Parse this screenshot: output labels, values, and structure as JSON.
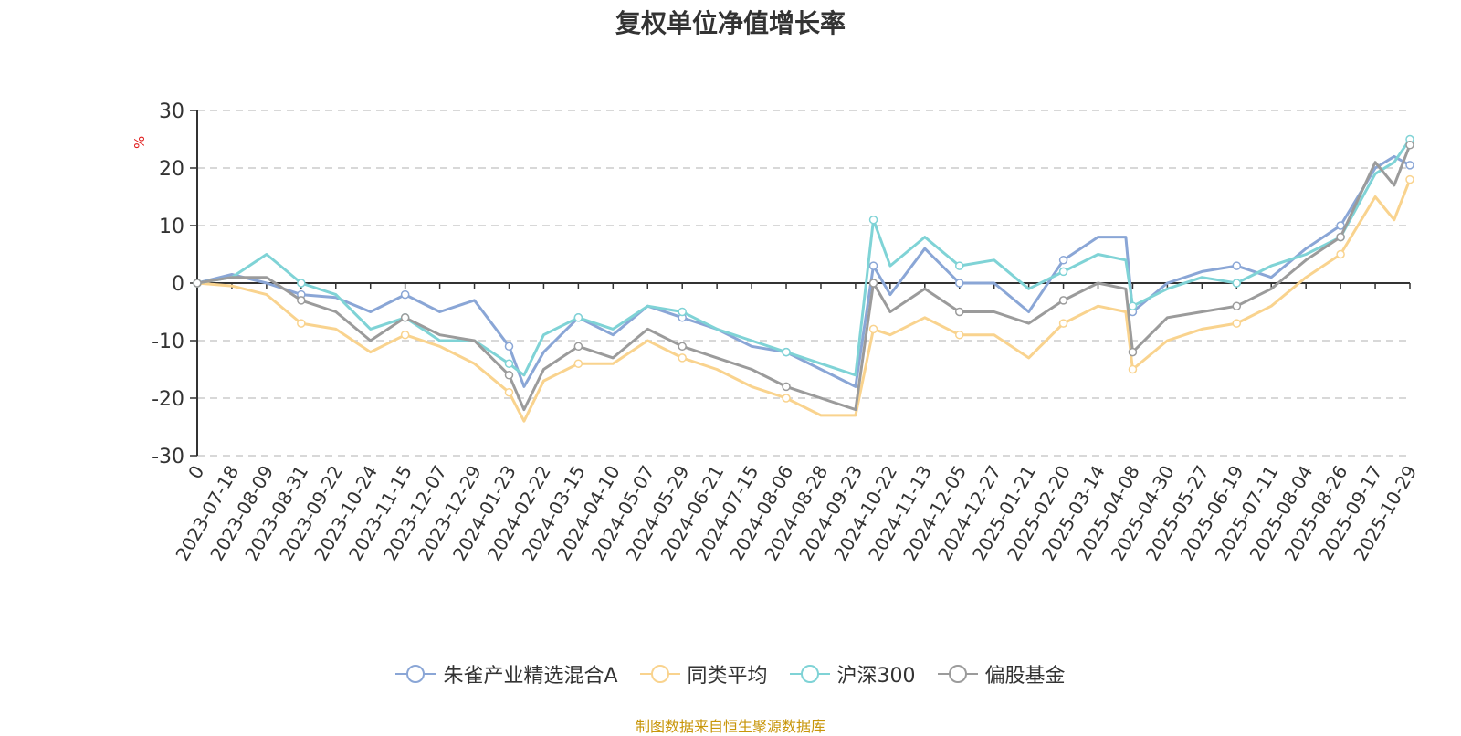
{
  "chart_data": {
    "type": "line",
    "title": "复权单位净值增长率",
    "ylabel": "%",
    "ylim": [
      -30,
      30
    ],
    "yticks": [
      30,
      20,
      10,
      0,
      -10,
      -20,
      -30
    ],
    "grid": true,
    "legend_position": "bottom",
    "x_tick_labels": [
      "0",
      "2023-07-18",
      "2023-08-09",
      "2023-08-31",
      "2023-09-22",
      "2023-10-24",
      "2023-11-15",
      "2023-12-07",
      "2023-12-29",
      "2024-01-23",
      "2024-02-22",
      "2024-03-15",
      "2024-04-10",
      "2024-05-07",
      "2024-05-29",
      "2024-06-21",
      "2024-07-15",
      "2024-08-06",
      "2024-08-28",
      "2024-09-23",
      "2024-10-22",
      "2024-11-13",
      "2024-12-05",
      "2024-12-27",
      "2025-01-21",
      "2025-02-20",
      "2025-03-14",
      "2025-04-08",
      "2025-04-30",
      "2025-05-27",
      "2025-06-19",
      "2025-07-11",
      "2025-08-04",
      "2025-08-26",
      "2025-09-17",
      "2025-10-29"
    ],
    "x": [
      "0",
      "2023-07-18",
      "2023-08-09",
      "2023-08-31",
      "2023-09-22",
      "2023-10-24",
      "2023-11-15",
      "2023-12-07",
      "2023-12-29",
      "2024-01-23",
      "2024-02-05",
      "2024-02-22",
      "2024-03-15",
      "2024-04-10",
      "2024-05-07",
      "2024-05-29",
      "2024-06-21",
      "2024-07-15",
      "2024-08-06",
      "2024-08-28",
      "2024-09-23",
      "2024-10-08",
      "2024-10-22",
      "2024-11-13",
      "2024-12-05",
      "2024-12-27",
      "2025-01-21",
      "2025-02-20",
      "2025-03-14",
      "2025-04-03",
      "2025-04-08",
      "2025-04-30",
      "2025-05-27",
      "2025-06-19",
      "2025-07-11",
      "2025-08-04",
      "2025-08-26",
      "2025-09-17",
      "2025-10-10",
      "2025-10-29"
    ],
    "series": [
      {
        "name": "朱雀产业精选混合A",
        "color": "#8aa6d6",
        "values": [
          0,
          1.5,
          0,
          -2,
          -2.5,
          -5,
          -2,
          -5,
          -3,
          -11,
          -18,
          -12,
          -6,
          -9,
          -4,
          -6,
          -8,
          -11,
          -12,
          -15,
          -18,
          3,
          -2,
          6,
          0,
          0,
          -5,
          4,
          8,
          8,
          -5,
          0,
          2,
          3,
          1,
          6,
          10,
          20,
          22,
          20.5
        ]
      },
      {
        "name": "同类平均",
        "color": "#f9d38e",
        "values": [
          0,
          -0.5,
          -2,
          -7,
          -8,
          -12,
          -9,
          -11,
          -14,
          -19,
          -24,
          -17,
          -14,
          -14,
          -10,
          -13,
          -15,
          -18,
          -20,
          -23,
          -23,
          -8,
          -9,
          -6,
          -9,
          -9,
          -13,
          -7,
          -4,
          -5,
          -15,
          -10,
          -8,
          -7,
          -4,
          1,
          5,
          15,
          11,
          18
        ]
      },
      {
        "name": "沪深300",
        "color": "#7fd3d6",
        "values": [
          0,
          1,
          5,
          0,
          -2,
          -8,
          -6,
          -10,
          -10,
          -14,
          -16,
          -9,
          -6,
          -8,
          -4,
          -5,
          -8,
          -10,
          -12,
          -14,
          -16,
          11,
          3,
          8,
          3,
          4,
          -1,
          2,
          5,
          4,
          -4,
          -1,
          1,
          0,
          3,
          5,
          8,
          19,
          21,
          25
        ]
      },
      {
        "name": "偏股基金",
        "color": "#9b9b9b",
        "values": [
          0,
          1,
          1,
          -3,
          -5,
          -10,
          -6,
          -9,
          -10,
          -16,
          -22,
          -15,
          -11,
          -13,
          -8,
          -11,
          -13,
          -15,
          -18,
          -20,
          -22,
          0,
          -5,
          -1,
          -5,
          -5,
          -7,
          -3,
          0,
          -1,
          -12,
          -6,
          -5,
          -4,
          -1,
          4,
          8,
          21,
          17,
          24
        ]
      }
    ]
  },
  "source_note": "制图数据来自恒生聚源数据库"
}
